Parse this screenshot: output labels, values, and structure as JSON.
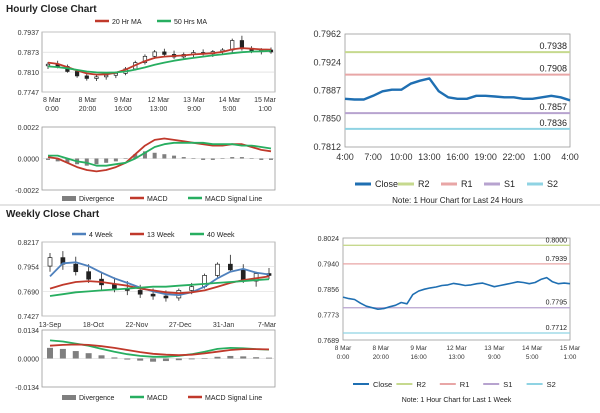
{
  "sections": {
    "hourly_title": "Hourly Close Chart",
    "weekly_title": "Weekly Close Chart"
  },
  "colors": {
    "ma_short": "#c0392b",
    "ma_long": "#27ae60",
    "macd": "#c0392b",
    "signal": "#27ae60",
    "divergence": "#7f7f7f",
    "close": "#1f6fb2",
    "r2": "#c6d98e",
    "r1": "#e8a6a6",
    "s1": "#b7a3cf",
    "s2": "#8fd3e3",
    "week4": "#4f81bd",
    "week13": "#c0392b",
    "week40": "#27ae60"
  },
  "chart_data": [
    {
      "id": "hourly_price",
      "type": "line",
      "legend": [
        "20 Hr MA",
        "50 Hrs MA"
      ],
      "yticks": [
        "0.7937",
        "0.7873",
        "0.7810",
        "0.7747"
      ],
      "ylim": [
        0.7747,
        0.7937
      ],
      "xticks": [
        [
          "8 Mar",
          "0:00"
        ],
        [
          "8 Mar",
          "20:00"
        ],
        [
          "9 Mar",
          "16:00"
        ],
        [
          "12 Mar",
          "13:00"
        ],
        [
          "13 Mar",
          "9:00"
        ],
        [
          "14 Mar",
          "5:00"
        ],
        [
          "15 Mar",
          "1:00"
        ]
      ],
      "ohlc": [
        [
          0.783,
          0.7842,
          0.782,
          0.7835
        ],
        [
          0.7835,
          0.7846,
          0.7822,
          0.7828
        ],
        [
          0.7828,
          0.7834,
          0.7808,
          0.7812
        ],
        [
          0.7812,
          0.782,
          0.7792,
          0.7798
        ],
        [
          0.7798,
          0.7806,
          0.7783,
          0.779
        ],
        [
          0.779,
          0.78,
          0.7782,
          0.7795
        ],
        [
          0.7795,
          0.7806,
          0.7786,
          0.78
        ],
        [
          0.78,
          0.7812,
          0.7791,
          0.7806
        ],
        [
          0.7806,
          0.7826,
          0.78,
          0.782
        ],
        [
          0.782,
          0.7846,
          0.7815,
          0.784
        ],
        [
          0.784,
          0.7866,
          0.7834,
          0.786
        ],
        [
          0.786,
          0.788,
          0.7852,
          0.7874
        ],
        [
          0.7874,
          0.7884,
          0.7858,
          0.7866
        ],
        [
          0.7866,
          0.7878,
          0.7852,
          0.7858
        ],
        [
          0.7858,
          0.7872,
          0.785,
          0.7866
        ],
        [
          0.7866,
          0.788,
          0.7858,
          0.7872
        ],
        [
          0.7872,
          0.7882,
          0.7862,
          0.7868
        ],
        [
          0.7868,
          0.788,
          0.7858,
          0.7875
        ],
        [
          0.7875,
          0.7886,
          0.7866,
          0.788
        ],
        [
          0.788,
          0.7916,
          0.7872,
          0.791
        ],
        [
          0.791,
          0.7925,
          0.7878,
          0.7884
        ],
        [
          0.7884,
          0.7892,
          0.787,
          0.7876
        ],
        [
          0.7876,
          0.7886,
          0.7866,
          0.788
        ],
        [
          0.788,
          0.7888,
          0.7868,
          0.7874
        ]
      ],
      "series": [
        {
          "name": "20 Hr MA",
          "values": [
            0.784,
            0.7836,
            0.7826,
            0.7815,
            0.7806,
            0.7802,
            0.7803,
            0.7808,
            0.7818,
            0.7832,
            0.7845,
            0.7855,
            0.7859,
            0.7861,
            0.7863,
            0.7866,
            0.7868,
            0.787,
            0.7874,
            0.7882,
            0.7886,
            0.7884,
            0.7882,
            0.7881
          ]
        },
        {
          "name": "50 Hrs MA",
          "values": [
            0.7828,
            0.7826,
            0.7822,
            0.7817,
            0.7812,
            0.7809,
            0.7808,
            0.7809,
            0.7812,
            0.7818,
            0.7825,
            0.7833,
            0.784,
            0.7846,
            0.7851,
            0.7855,
            0.7859,
            0.7863,
            0.7866,
            0.787,
            0.7873,
            0.7875,
            0.7876,
            0.7877
          ]
        }
      ]
    },
    {
      "id": "hourly_macd",
      "type": "line",
      "yticks": [
        "0.0022",
        "0.0000",
        "-0.0022"
      ],
      "ylim": [
        -0.0022,
        0.0022
      ],
      "legend": [
        "Divergence",
        "MACD",
        "MACD Signal Line"
      ],
      "divergence": [
        -0.0001,
        -0.0002,
        -0.0003,
        -0.0004,
        -0.0005,
        -0.0004,
        -0.0003,
        -0.0002,
        0.0,
        0.0003,
        0.0005,
        0.0004,
        0.0003,
        0.0002,
        0.0001,
        0.0,
        -0.0001,
        -0.0001,
        0.0,
        0.0001,
        0.0001,
        0.0,
        -0.0001,
        -0.0001
      ],
      "series": [
        {
          "name": "MACD",
          "values": [
            0.0001,
            0.0,
            -0.0003,
            -0.0006,
            -0.0008,
            -0.0009,
            -0.0008,
            -0.0006,
            -0.0003,
            0.0003,
            0.0009,
            0.0013,
            0.0014,
            0.0013,
            0.0012,
            0.0011,
            0.001,
            0.0009,
            0.0009,
            0.001,
            0.001,
            0.0008,
            0.0006,
            0.0005
          ]
        },
        {
          "name": "MACD Signal Line",
          "values": [
            0.0002,
            0.0002,
            0.0,
            -0.0002,
            -0.0003,
            -0.0005,
            -0.0005,
            -0.0004,
            -0.0003,
            0.0,
            0.0004,
            0.0008,
            0.001,
            0.0011,
            0.0011,
            0.0011,
            0.0011,
            0.001,
            0.001,
            0.001,
            0.0009,
            0.0009,
            0.0008,
            0.0007
          ]
        }
      ]
    },
    {
      "id": "hourly_close_24h",
      "type": "line",
      "yticks": [
        "0.7962",
        "0.7924",
        "0.7887",
        "0.7850",
        "0.7812"
      ],
      "ylim": [
        0.7812,
        0.7962
      ],
      "xticks": [
        "4:00",
        "7:00",
        "10:00",
        "13:00",
        "16:00",
        "19:00",
        "22:00",
        "1:00",
        "4:00"
      ],
      "levels": [
        {
          "name": "R2",
          "value": 0.7938,
          "label": "0.7938"
        },
        {
          "name": "R1",
          "value": 0.7908,
          "label": "0.7908"
        },
        {
          "name": "S1",
          "value": 0.7857,
          "label": "0.7857"
        },
        {
          "name": "S2",
          "value": 0.7836,
          "label": "0.7836"
        }
      ],
      "series": [
        {
          "name": "Close",
          "values": [
            0.7876,
            0.7875,
            0.7875,
            0.788,
            0.7886,
            0.7888,
            0.7888,
            0.7896,
            0.79,
            0.7903,
            0.7886,
            0.7878,
            0.7876,
            0.7876,
            0.788,
            0.788,
            0.7879,
            0.7878,
            0.7878,
            0.7876,
            0.7876,
            0.7878,
            0.788,
            0.7878,
            0.7874
          ]
        }
      ],
      "legend": [
        "Close",
        "R2",
        "R1",
        "S1",
        "S2"
      ],
      "note": "Note: 1 Hour Chart for Last 24 Hours"
    },
    {
      "id": "weekly_price",
      "type": "line",
      "legend": [
        "4 Week",
        "13 Week",
        "40 Week"
      ],
      "yticks": [
        "0.8217",
        "0.7954",
        "0.7690",
        "0.7427"
      ],
      "ylim": [
        0.7427,
        0.8217
      ],
      "xticks": [
        "13-Sep",
        "18-Oct",
        "22-Nov",
        "27-Dec",
        "31-Jan",
        "7-Mar"
      ],
      "ohlc": [
        [
          0.796,
          0.81,
          0.79,
          0.805
        ],
        [
          0.805,
          0.812,
          0.792,
          0.798
        ],
        [
          0.798,
          0.806,
          0.786,
          0.79
        ],
        [
          0.79,
          0.798,
          0.778,
          0.782
        ],
        [
          0.782,
          0.79,
          0.77,
          0.776
        ],
        [
          0.776,
          0.784,
          0.768,
          0.772
        ],
        [
          0.772,
          0.78,
          0.765,
          0.77
        ],
        [
          0.77,
          0.776,
          0.762,
          0.766
        ],
        [
          0.766,
          0.772,
          0.76,
          0.764
        ],
        [
          0.764,
          0.77,
          0.758,
          0.762
        ],
        [
          0.762,
          0.772,
          0.759,
          0.77
        ],
        [
          0.77,
          0.778,
          0.766,
          0.774
        ],
        [
          0.774,
          0.788,
          0.772,
          0.786
        ],
        [
          0.786,
          0.8,
          0.784,
          0.798
        ],
        [
          0.798,
          0.808,
          0.79,
          0.792
        ],
        [
          0.792,
          0.798,
          0.778,
          0.78
        ],
        [
          0.78,
          0.79,
          0.774,
          0.788
        ],
        [
          0.788,
          0.794,
          0.782,
          0.786
        ]
      ],
      "series": [
        {
          "name": "4 Week",
          "values": [
            0.785,
            0.799,
            0.8,
            0.796,
            0.789,
            0.783,
            0.778,
            0.773,
            0.769,
            0.766,
            0.765,
            0.768,
            0.774,
            0.783,
            0.79,
            0.793,
            0.789,
            0.787
          ]
        },
        {
          "name": "13 Week",
          "values": [
            0.772,
            0.776,
            0.779,
            0.78,
            0.779,
            0.777,
            0.775,
            0.772,
            0.77,
            0.768,
            0.767,
            0.768,
            0.77,
            0.774,
            0.778,
            0.781,
            0.783,
            0.785
          ]
        },
        {
          "name": "40 Week",
          "values": [
            0.764,
            0.766,
            0.768,
            0.769,
            0.77,
            0.771,
            0.772,
            0.773,
            0.774,
            0.774,
            0.775,
            0.776,
            0.777,
            0.778,
            0.779,
            0.78,
            0.781,
            0.782
          ]
        }
      ]
    },
    {
      "id": "weekly_macd",
      "type": "line",
      "yticks": [
        "0.0134",
        "0.0000",
        "-0.0134"
      ],
      "ylim": [
        -0.0134,
        0.0134
      ],
      "legend": [
        "Divergence",
        "MACD",
        "MACD Signal Line"
      ],
      "divergence": [
        0.005,
        0.0045,
        0.0035,
        0.0025,
        0.0015,
        0.0005,
        -0.0005,
        -0.001,
        -0.0015,
        -0.0012,
        -0.0008,
        -0.0004,
        0.0,
        0.0008,
        0.0012,
        0.001,
        0.0006,
        0.0004
      ],
      "series": [
        {
          "name": "MACD",
          "values": [
            0.0085,
            0.008,
            0.007,
            0.006,
            0.0045,
            0.0032,
            0.002,
            0.0012,
            0.0008,
            0.0008,
            0.0012,
            0.002,
            0.0032,
            0.0045,
            0.005,
            0.0048,
            0.0044,
            0.0042
          ]
        },
        {
          "name": "MACD Signal Line",
          "values": [
            0.006,
            0.0064,
            0.0066,
            0.0064,
            0.0058,
            0.005,
            0.004,
            0.003,
            0.0022,
            0.0018,
            0.0016,
            0.0018,
            0.0024,
            0.0032,
            0.004,
            0.0044,
            0.0044,
            0.0043
          ]
        }
      ]
    },
    {
      "id": "weekly_close",
      "type": "line",
      "yticks": [
        "0.8024",
        "0.7940",
        "0.7856",
        "0.7773",
        "0.7689"
      ],
      "ylim": [
        0.7689,
        0.8024
      ],
      "xticks": [
        [
          "8 Mar",
          "0:00"
        ],
        [
          "8 Mar",
          "20:00"
        ],
        [
          "9 Mar",
          "16:00"
        ],
        [
          "12 Mar",
          "13:00"
        ],
        [
          "13 Mar",
          "9:00"
        ],
        [
          "14 Mar",
          "5:00"
        ],
        [
          "15 Mar",
          "1:00"
        ]
      ],
      "levels": [
        {
          "name": "R2",
          "value": 0.8,
          "label": "0.8000"
        },
        {
          "name": "R1",
          "value": 0.7939,
          "label": "0.7939"
        },
        {
          "name": "S1",
          "value": 0.7795,
          "label": "0.7795"
        },
        {
          "name": "S2",
          "value": 0.7712,
          "label": "0.7712"
        }
      ],
      "series": [
        {
          "name": "Close",
          "values": [
            0.783,
            0.7825,
            0.7822,
            0.781,
            0.78,
            0.7795,
            0.779,
            0.7792,
            0.7798,
            0.7803,
            0.7812,
            0.7808,
            0.7838,
            0.785,
            0.7856,
            0.786,
            0.7863,
            0.7868,
            0.787,
            0.7875,
            0.7872,
            0.7868,
            0.787,
            0.7874,
            0.7876,
            0.787,
            0.7864,
            0.7868,
            0.7872,
            0.7876,
            0.788,
            0.7878,
            0.7874,
            0.7878,
            0.7888,
            0.7894,
            0.788,
            0.7874,
            0.7876,
            0.7874
          ]
        }
      ],
      "legend": [
        "Close",
        "R2",
        "R1",
        "S1",
        "S2"
      ],
      "note": "Note: 1 Hour Chart for Last 1 Week"
    }
  ]
}
